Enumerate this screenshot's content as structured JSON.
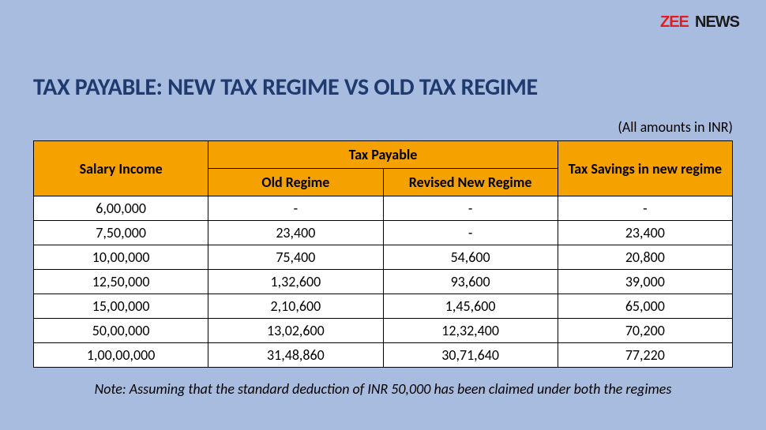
{
  "logo": {
    "text_zee": "ZEE",
    "text_news": "NEWS",
    "color_zee": "#e31e23",
    "color_news": "#1a1a1a",
    "fontsize": 18
  },
  "title": {
    "text": "TAX PAYABLE: NEW TAX REGIME VS OLD TAX REGIME",
    "color": "#1f3a6e",
    "fontsize": 30
  },
  "subtitle": {
    "text": "(All amounts in INR)",
    "color": "#000000",
    "fontsize": 18
  },
  "table": {
    "type": "table",
    "header_bg": "#f5a100",
    "header_fg": "#000000",
    "cell_bg": "#ffffff",
    "cell_fg": "#000000",
    "border_color": "#000000",
    "header_fontsize": 18,
    "cell_fontsize": 18,
    "columns": [
      {
        "key": "salary",
        "label": "Salary Income",
        "rowspan": 2,
        "width_pct": 25,
        "align": "center"
      },
      {
        "key": "tax_payable",
        "label": "Tax Payable",
        "colspan": 2,
        "width_pct": 50,
        "align": "center",
        "sub": [
          {
            "key": "old",
            "label": "Old Regime",
            "width_pct": 25,
            "align": "center"
          },
          {
            "key": "new",
            "label": "Revised New Regime",
            "width_pct": 25,
            "align": "center"
          }
        ]
      },
      {
        "key": "savings",
        "label": "Tax Savings in new regime",
        "rowspan": 2,
        "width_pct": 25,
        "align": "center"
      }
    ],
    "rows": [
      {
        "salary": "6,00,000",
        "old": "-",
        "new": "-",
        "savings": "-"
      },
      {
        "salary": "7,50,000",
        "old": "23,400",
        "new": "-",
        "savings": "23,400"
      },
      {
        "salary": "10,00,000",
        "old": "75,400",
        "new": "54,600",
        "savings": "20,800"
      },
      {
        "salary": "12,50,000",
        "old": "1,32,600",
        "new": "93,600",
        "savings": "39,000"
      },
      {
        "salary": "15,00,000",
        "old": "2,10,600",
        "new": "1,45,600",
        "savings": "65,000"
      },
      {
        "salary": "50,00,000",
        "old": "13,02,600",
        "new": "12,32,400",
        "savings": "70,200"
      },
      {
        "salary": "1,00,00,000",
        "old": "31,48,860",
        "new": "30,71,640",
        "savings": "77,220"
      }
    ]
  },
  "note": {
    "text": "Note: Assuming that the standard deduction of INR 50,000 has been claimed under both the regimes",
    "color": "#000000",
    "fontsize": 18,
    "font_style": "italic"
  },
  "background_color": "#a8bce0"
}
